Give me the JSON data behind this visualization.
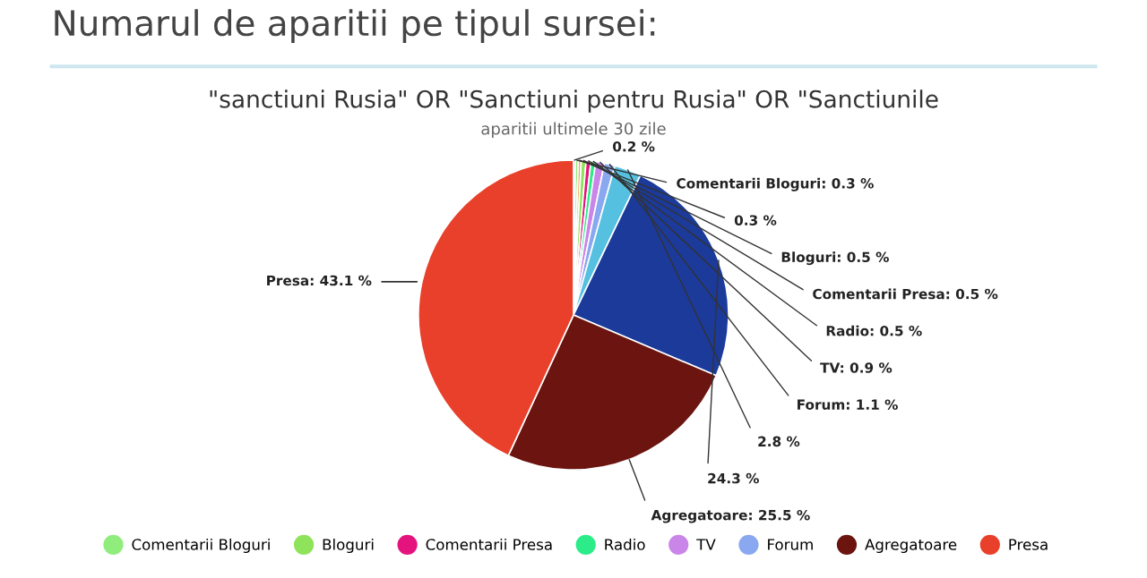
{
  "chart_data": {
    "type": "pie",
    "title": "\"sanctiuni Rusia\" OR \"Sanctiuni pentru Rusia\" OR \"Sanctiunile",
    "subtitle": "aparitii ultimele 30 zile",
    "annotations": [
      "Numarul de aparitii pe tipul sursei:"
    ],
    "categories": [
      null,
      null,
      "Comentarii Bloguri",
      null,
      "Bloguri",
      "Comentarii Presa",
      "Radio",
      "TV",
      "Forum",
      null,
      null,
      "Agregatoare",
      "Presa"
    ],
    "values": [
      0,
      0.2,
      0.3,
      0.3,
      0.5,
      0.5,
      0.5,
      0.9,
      1.1,
      2.8,
      24.3,
      25.5,
      43.1
    ],
    "colors": [
      "#434348",
      "#3d5f85",
      "#90ed7d",
      "#f7a35c",
      "#8ee35a",
      "#e4137d",
      "#2bec89",
      "#c986e8",
      "#8aa8f0",
      "#56c0e0",
      "#1b3a9a",
      "#6b1410",
      "#e8402a"
    ],
    "value_labels": [
      null,
      "0.2 %",
      "Comentarii Bloguri: 0.3 %",
      "0.3 %",
      "Bloguri: 0.5 %",
      "Comentarii Presa: 0.5 %",
      "Radio: 0.5 %",
      "TV: 0.9 %",
      "Forum: 1.1 %",
      "2.8 %",
      "24.3 %",
      "Agregatoare: 25.5 %",
      "Presa: 43.1 %"
    ],
    "legend": "bottom"
  }
}
